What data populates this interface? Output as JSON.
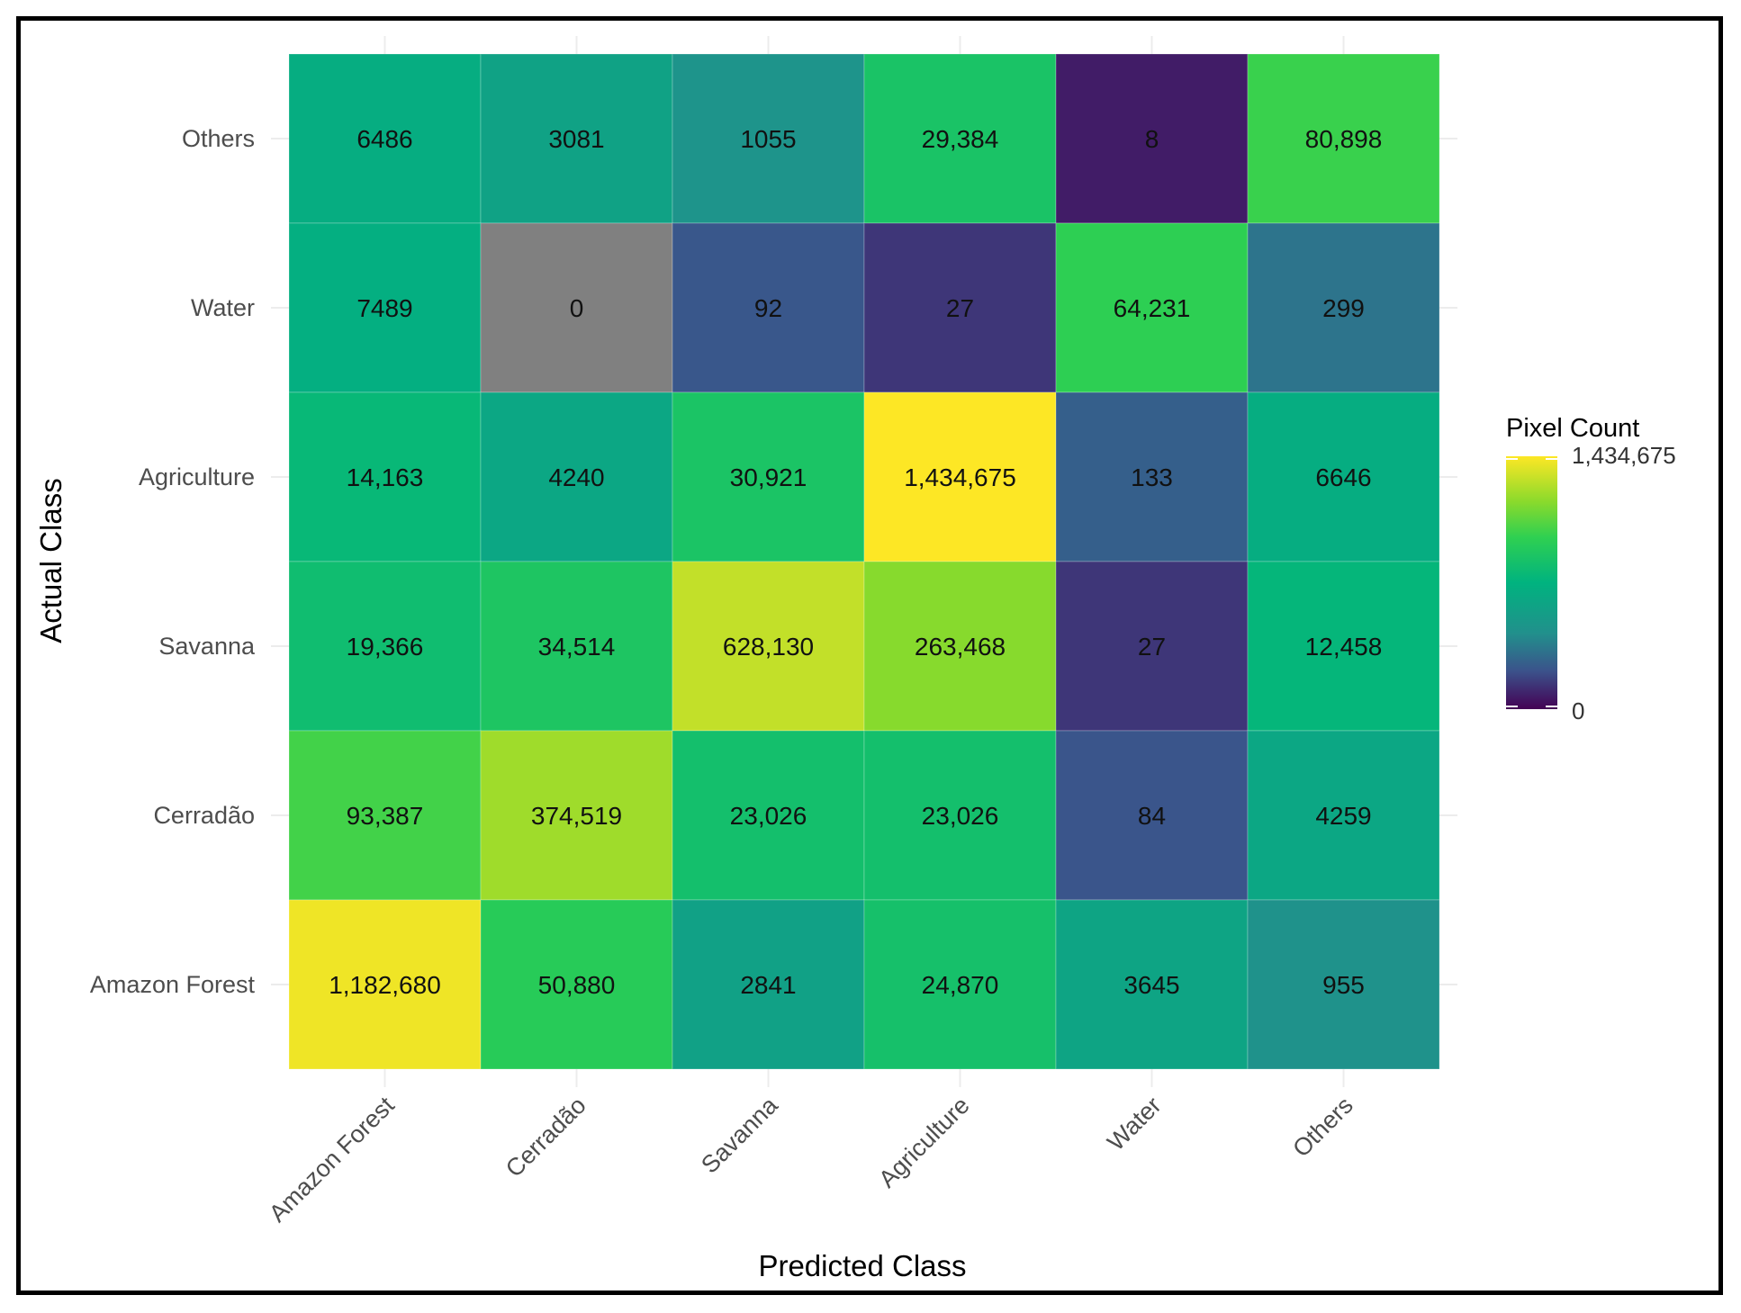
{
  "chart_data": {
    "type": "heatmap",
    "title": "",
    "xlabel": "Predicted Class",
    "ylabel": "Actual Class",
    "x_categories": [
      "Amazon Forest",
      "Cerradão",
      "Savanna",
      "Agriculture",
      "Water",
      "Others"
    ],
    "y_categories": [
      "Others",
      "Water",
      "Agriculture",
      "Savanna",
      "Cerradão",
      "Amazon Forest"
    ],
    "values": [
      [
        6486,
        3081,
        1055,
        29384,
        8,
        80898
      ],
      [
        7489,
        0,
        92,
        27,
        64231,
        299
      ],
      [
        14163,
        4240,
        30921,
        1434675,
        133,
        6646
      ],
      [
        19366,
        34514,
        628130,
        263468,
        27,
        12458
      ],
      [
        93387,
        374519,
        23026,
        23026,
        84,
        4259
      ],
      [
        1182680,
        50880,
        2841,
        24870,
        3645,
        955
      ]
    ],
    "labels": [
      [
        "6486",
        "3081",
        "1055",
        "29,384",
        "8",
        "80,898"
      ],
      [
        "7489",
        "0",
        "92",
        "27",
        "64,231",
        "299"
      ],
      [
        "14,163",
        "4240",
        "30,921",
        "1,434,675",
        "133",
        "6646"
      ],
      [
        "19,366",
        "34,514",
        "628,130",
        "263,468",
        "27",
        "12,458"
      ],
      [
        "93,387",
        "374,519",
        "23,026",
        "23,026",
        "84",
        "4259"
      ],
      [
        "1,182,680",
        "50,880",
        "2841",
        "24,870",
        "3645",
        "955"
      ]
    ],
    "zero_color": "#808080",
    "colormap": "viridis",
    "legend": {
      "title": "Pixel Count",
      "max_label": "1,434,675",
      "min_label": "0",
      "position": "right"
    }
  }
}
